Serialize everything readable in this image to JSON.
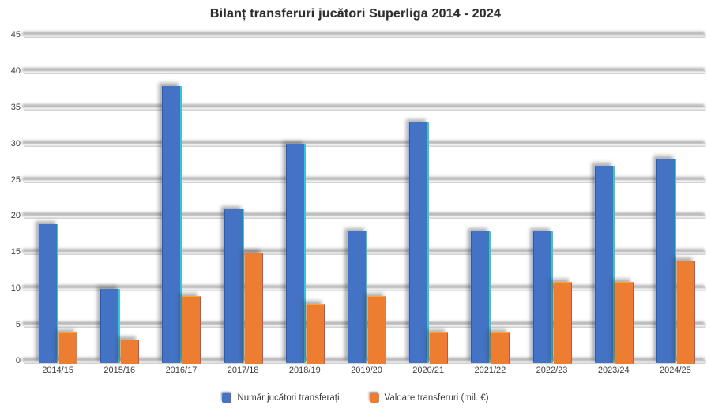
{
  "title": "Bilanț transferuri jucători Superliga 2014 - 2024",
  "colors": {
    "series1": "#4472C4",
    "series2": "#ED7D31",
    "gridline": "#D9D9D9",
    "text": "#3D3D3D",
    "background": "#FFFFFF",
    "blue_edge_highlight": "#2ED8E2",
    "orange_edge_highlight": "#DE3E26"
  },
  "chart_data": {
    "type": "bar",
    "title": "Bilanț transferuri jucători Superliga 2014 - 2024",
    "categories": [
      "2014/15",
      "2015/16",
      "2016/17",
      "2017/18",
      "2018/19",
      "2019/20",
      "2020/21",
      "2021/22",
      "2022/23",
      "2023/24",
      "2024/25"
    ],
    "series": [
      {
        "name": "Număr jucători transferați",
        "color": "#4472C4",
        "values": [
          19,
          10,
          38,
          21,
          30,
          18,
          33,
          18,
          18,
          27,
          28
        ]
      },
      {
        "name": "Valoare transferuri (mil. €)",
        "color": "#ED7D31",
        "values": [
          4,
          3,
          9,
          15,
          8,
          9,
          4,
          4,
          11,
          11,
          14
        ]
      }
    ],
    "xlabel": "",
    "ylabel": "",
    "ylim": [
      0,
      45
    ],
    "ytick_step": 5,
    "yticks": [
      0,
      5,
      10,
      15,
      20,
      25,
      30,
      35,
      40,
      45
    ],
    "grid": true,
    "legend_position": "bottom"
  }
}
